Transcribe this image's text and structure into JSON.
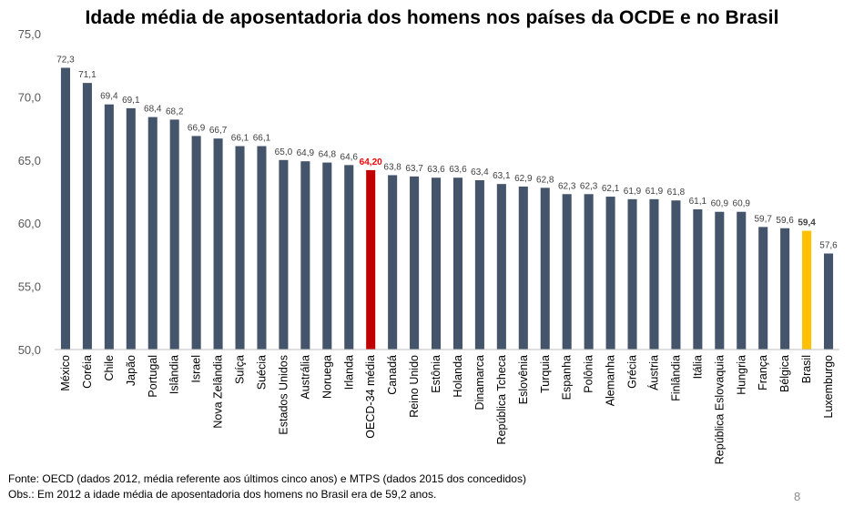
{
  "page": {
    "title": "Idade média de aposentadoria dos homens nos países da OCDE e no Brasil",
    "footnotes": [
      "Fonte: OECD (dados 2012, média referente aos últimos cinco anos) e MTPS (dados 2015 dos concedidos)",
      "Obs.: Em 2012 a idade média de aposentadoria dos homens no Brasil era de 59,2 anos."
    ],
    "page_number": "8"
  },
  "chart_data": {
    "type": "bar",
    "title": "Idade média de aposentadoria dos homens nos países da OCDE e no Brasil",
    "xlabel": "",
    "ylabel": "",
    "ylim": [
      50,
      75
    ],
    "yticks": [
      50,
      55,
      60,
      65,
      70,
      75
    ],
    "ytick_labels": [
      "50,0",
      "55,0",
      "60,0",
      "65,0",
      "70,0",
      "75,0"
    ],
    "grid": false,
    "legend": "none",
    "colors": {
      "default": "#44546a",
      "oecd_average": "#c00000",
      "brasil": "#ffc000",
      "oecd_label": "#ff0000"
    },
    "categories": [
      "México",
      "Coréia",
      "Chile",
      "Japão",
      "Portugal",
      "Islândia",
      "Israel",
      "Nova Zelândia",
      "Suíça",
      "Suécia",
      "Estados Unidos",
      "Austrália",
      "Noruega",
      "Irlanda",
      "OECD-34 média",
      "Canadá",
      "Reino Unido",
      "Estônia",
      "Holanda",
      "Dinamarca",
      "República Tcheca",
      "Eslovênia",
      "Turquia",
      "Espanha",
      "Polônia",
      "Alemanha",
      "Grécia",
      "Áustria",
      "Finlândia",
      "Itália",
      "República Eslovaquia",
      "Hungria",
      "França",
      "Bélgica",
      "Brasil",
      "Luxemburgo"
    ],
    "values": [
      72.3,
      71.1,
      69.4,
      69.1,
      68.4,
      68.2,
      66.9,
      66.7,
      66.1,
      66.1,
      65.0,
      64.9,
      64.8,
      64.6,
      64.2,
      63.8,
      63.7,
      63.6,
      63.6,
      63.4,
      63.1,
      62.9,
      62.8,
      62.3,
      62.3,
      62.1,
      61.9,
      61.9,
      61.8,
      61.1,
      60.9,
      60.9,
      59.7,
      59.6,
      59.4,
      57.6
    ],
    "value_labels": [
      "72,3",
      "71,1",
      "69,4",
      "69,1",
      "68,4",
      "68,2",
      "66,9",
      "66,7",
      "66,1",
      "66,1",
      "65,0",
      "64,9",
      "64,8",
      "64,6",
      "64,20",
      "63,8",
      "63,7",
      "63,6",
      "63,6",
      "63,4",
      "63,1",
      "62,9",
      "62,8",
      "62,3",
      "62,3",
      "62,1",
      "61,9",
      "61,9",
      "61,8",
      "61,1",
      "60,9",
      "60,9",
      "59,7",
      "59,6",
      "59,4",
      "57,6"
    ],
    "highlights": {
      "OECD-34 média": "oecd_average",
      "Brasil": "brasil"
    }
  }
}
